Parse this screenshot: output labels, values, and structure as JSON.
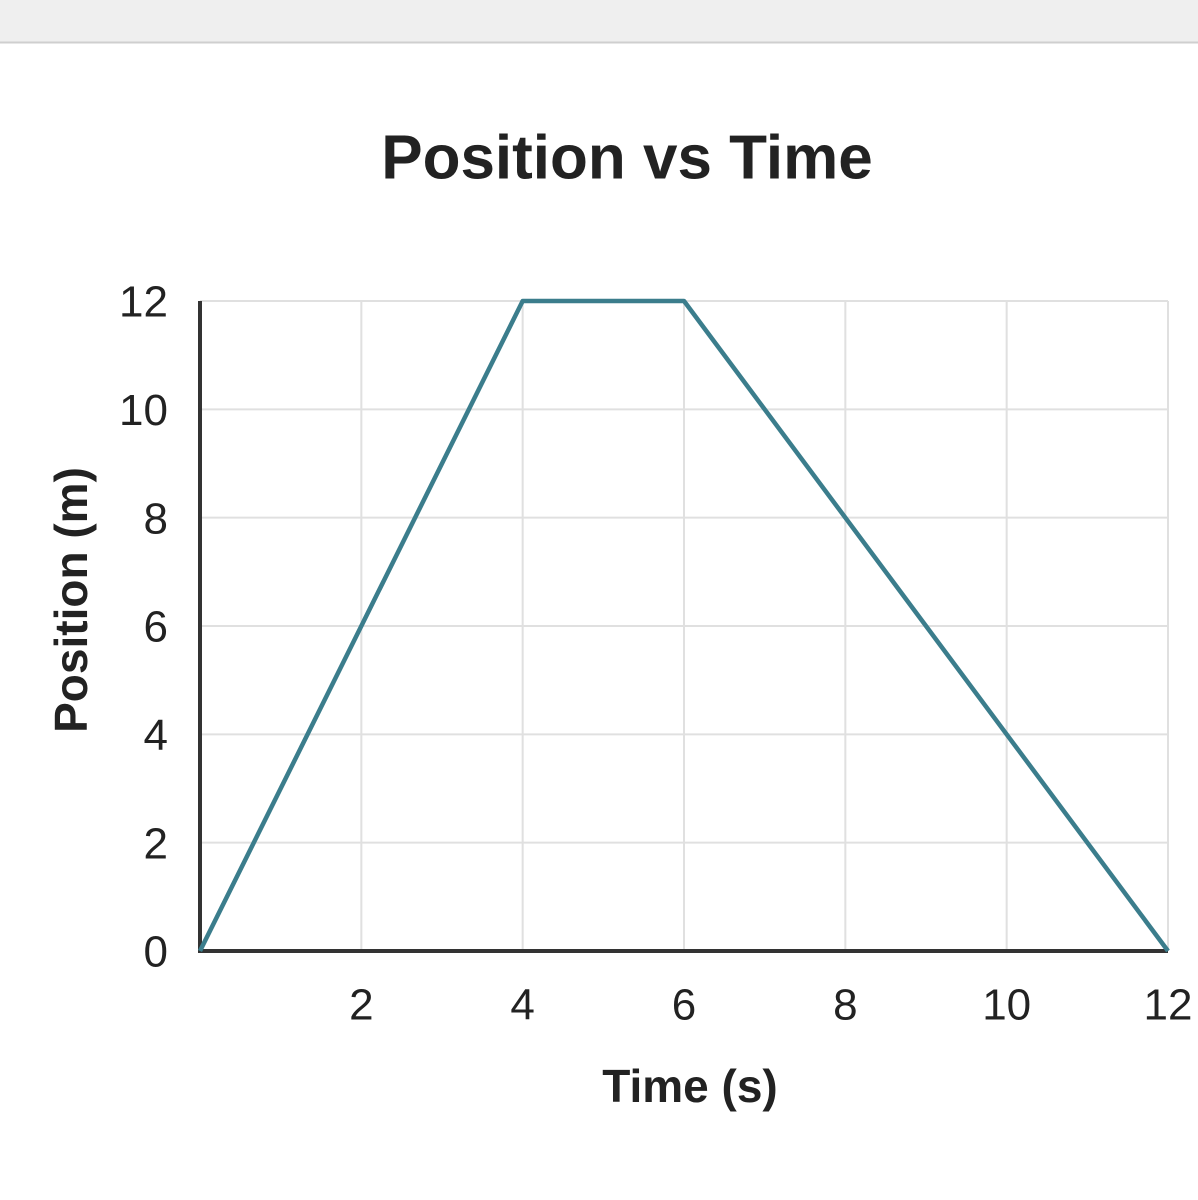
{
  "chart_data": {
    "type": "line",
    "title": "Position vs Time",
    "x_label": "Time (s)",
    "y_label": "Position (m)",
    "x": [
      0,
      4,
      6,
      12
    ],
    "values": [
      0,
      12,
      12,
      0
    ],
    "color": "#3b7d8c",
    "xlim": [
      0,
      12
    ],
    "xticks": [
      2,
      4,
      6,
      8,
      10,
      12
    ],
    "ylim": [
      0,
      12
    ],
    "yticks": [
      0,
      2,
      4,
      6,
      8,
      10,
      12
    ],
    "grid": true
  }
}
